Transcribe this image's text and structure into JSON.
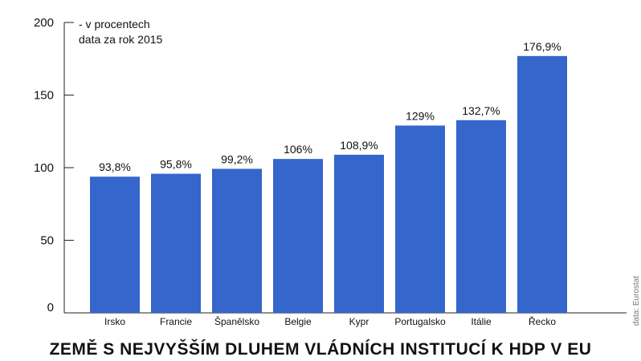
{
  "chart_data": {
    "type": "bar",
    "title": "ZEMĚ S NEJVYŠŠÍM DLUHEM VLÁDNÍCH INSTITUCÍ K HDP V EU",
    "note_lines": [
      "- v procentech",
      "data za rok 2015"
    ],
    "source": "data: Eurostat",
    "categories": [
      "Irsko",
      "Francie",
      "Španělsko",
      "Belgie",
      "Kypr",
      "Portugalsko",
      "Itálie",
      "Řecko"
    ],
    "values": [
      93.8,
      95.8,
      99.2,
      106,
      108.9,
      129,
      132.7,
      176.9
    ],
    "value_labels": [
      "93,8%",
      "95,8%",
      "99,2%",
      "106%",
      "108,9%",
      "129%",
      "132,7%",
      "176,9%"
    ],
    "ylim": [
      0,
      200
    ],
    "yticks": [
      0,
      50,
      100,
      150,
      200
    ],
    "xlabel": "",
    "ylabel": "",
    "grid": false,
    "bar_color": "#3466cc"
  }
}
